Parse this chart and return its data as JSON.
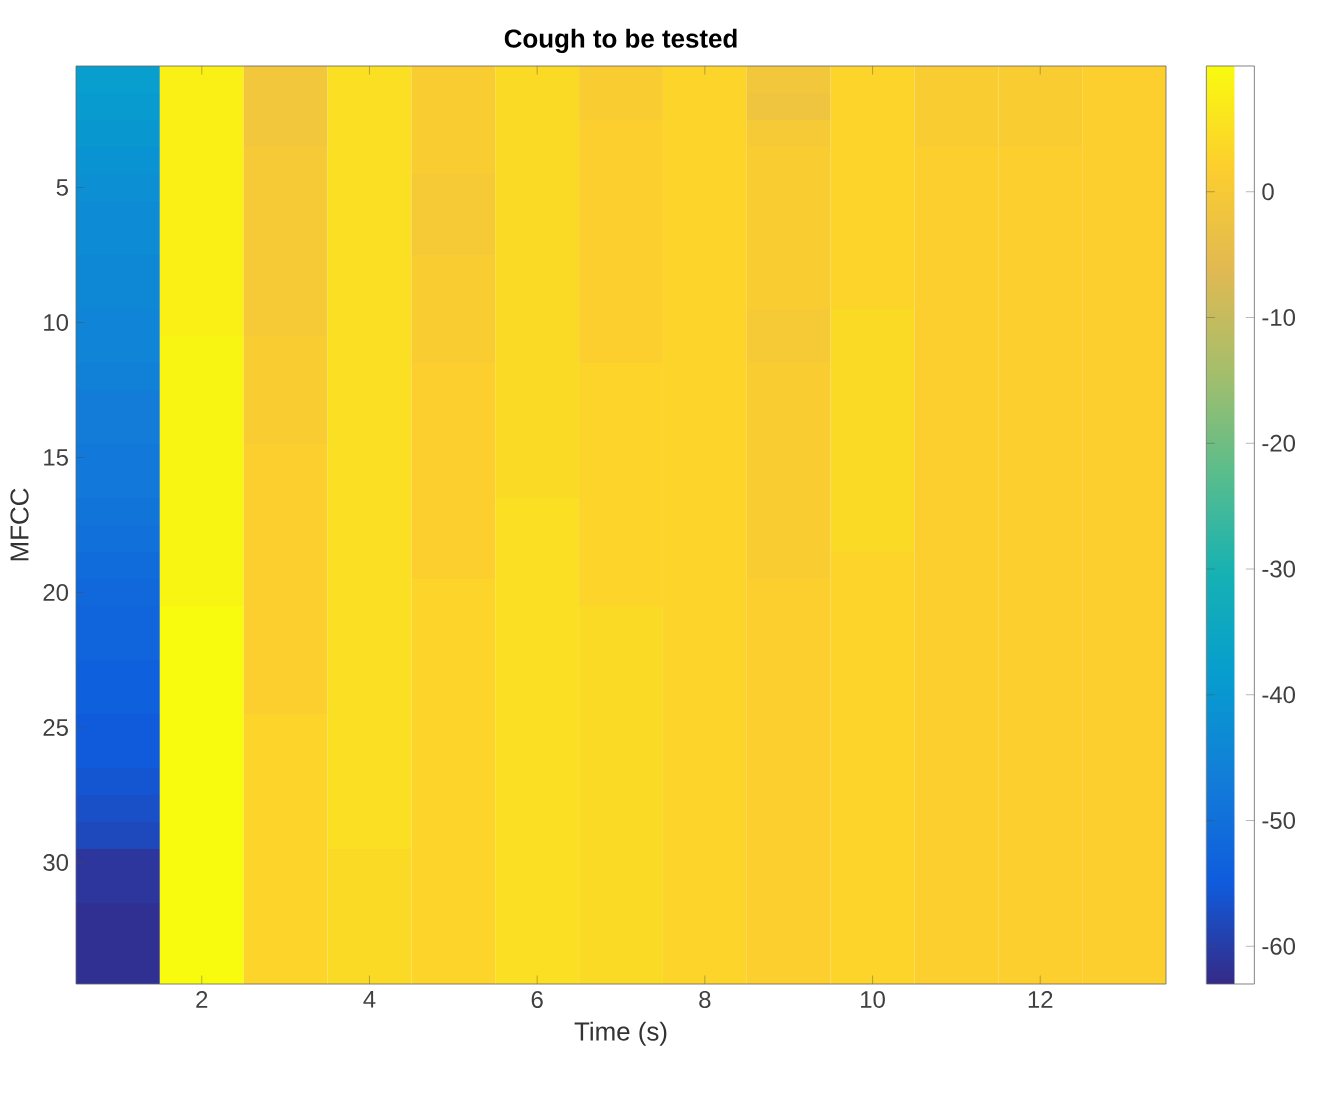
{
  "chart_data": {
    "type": "heatmap",
    "title": "Cough to be tested",
    "xlabel": "Time (s)",
    "ylabel": "MFCC",
    "categories": [
      null,
      "2",
      null,
      "4",
      null,
      "6",
      null,
      "8",
      null,
      "10",
      null,
      "12",
      null
    ],
    "y_categories": [
      null,
      null,
      null,
      null,
      "5",
      null,
      null,
      null,
      null,
      "10",
      null,
      null,
      null,
      null,
      "15",
      null,
      null,
      null,
      null,
      "20",
      null,
      null,
      null,
      null,
      "25",
      null,
      null,
      null,
      null,
      "30",
      null,
      null,
      null,
      null
    ],
    "clim": [
      -63,
      10
    ],
    "cticks": [
      -60,
      -50,
      -40,
      -30,
      -20,
      -10,
      0
    ],
    "cells": [
      [
        -38,
        8,
        -1,
        5,
        1,
        4,
        1,
        3,
        -1,
        3,
        1,
        1,
        2
      ],
      [
        -39,
        8,
        -1,
        5,
        1,
        4,
        1,
        3,
        -2,
        3,
        1,
        1,
        2
      ],
      [
        -40,
        8,
        -1,
        5,
        1,
        4,
        2,
        3,
        0,
        3,
        1,
        1,
        2
      ],
      [
        -41,
        8,
        0,
        5,
        1,
        4,
        2,
        3,
        1,
        3,
        2,
        2,
        2
      ],
      [
        -42,
        8,
        0,
        5,
        0,
        4,
        2,
        3,
        1,
        3,
        2,
        2,
        2
      ],
      [
        -43,
        8,
        0,
        5,
        0,
        4,
        2,
        3,
        1,
        3,
        2,
        2,
        2
      ],
      [
        -43,
        8,
        0,
        5,
        0,
        4,
        2,
        3,
        1,
        3,
        2,
        2,
        2
      ],
      [
        -44,
        8,
        0,
        5,
        1,
        4,
        2,
        3,
        1,
        3,
        2,
        2,
        2
      ],
      [
        -44,
        8,
        0,
        5,
        1,
        4,
        2,
        3,
        1,
        3,
        2,
        2,
        2
      ],
      [
        -45,
        8,
        0,
        5,
        1,
        4,
        2,
        3,
        0,
        4,
        2,
        2,
        2
      ],
      [
        -45,
        9,
        1,
        5,
        1,
        4,
        2,
        3,
        0,
        4,
        2,
        2,
        2
      ],
      [
        -46,
        9,
        1,
        5,
        2,
        4,
        3,
        3,
        1,
        4,
        2,
        2,
        2
      ],
      [
        -47,
        9,
        1,
        5,
        2,
        4,
        3,
        3,
        1,
        4,
        2,
        2,
        2
      ],
      [
        -47,
        9,
        1,
        5,
        2,
        4,
        3,
        3,
        1,
        4,
        2,
        2,
        2
      ],
      [
        -48,
        9,
        2,
        5,
        2,
        4,
        3,
        3,
        1,
        4,
        2,
        2,
        2
      ],
      [
        -48,
        9,
        2,
        5,
        2,
        4,
        3,
        3,
        1,
        4,
        2,
        2,
        2
      ],
      [
        -49,
        9,
        2,
        5,
        2,
        5,
        3,
        3,
        1,
        4,
        2,
        2,
        2
      ],
      [
        -50,
        9,
        2,
        5,
        2,
        5,
        3,
        3,
        1,
        4,
        2,
        2,
        2
      ],
      [
        -51,
        9,
        2,
        5,
        2,
        5,
        3,
        3,
        1,
        3,
        2,
        2,
        2
      ],
      [
        -52,
        9,
        2,
        5,
        3,
        5,
        3,
        3,
        2,
        3,
        2,
        2,
        2
      ],
      [
        -53,
        10,
        2,
        5,
        3,
        5,
        4,
        3,
        2,
        3,
        2,
        2,
        2
      ],
      [
        -53,
        10,
        2,
        5,
        3,
        5,
        4,
        3,
        2,
        3,
        2,
        2,
        2
      ],
      [
        -54,
        10,
        2,
        5,
        3,
        5,
        4,
        3,
        2,
        3,
        2,
        2,
        2
      ],
      [
        -54,
        10,
        2,
        5,
        3,
        5,
        4,
        3,
        2,
        3,
        2,
        2,
        2
      ],
      [
        -55,
        10,
        3,
        5,
        3,
        5,
        4,
        3,
        2,
        3,
        2,
        2,
        2
      ],
      [
        -55,
        10,
        3,
        5,
        3,
        5,
        4,
        3,
        2,
        3,
        2,
        2,
        2
      ],
      [
        -56,
        10,
        3,
        5,
        3,
        5,
        4,
        3,
        2,
        3,
        2,
        2,
        2
      ],
      [
        -57,
        10,
        3,
        5,
        3,
        5,
        4,
        3,
        2,
        3,
        2,
        2,
        2
      ],
      [
        -58,
        10,
        3,
        5,
        3,
        5,
        4,
        3,
        2,
        3,
        2,
        2,
        2
      ],
      [
        -61,
        10,
        3,
        4,
        3,
        5,
        4,
        3,
        2,
        3,
        2,
        2,
        2
      ],
      [
        -61,
        10,
        3,
        4,
        3,
        5,
        4,
        3,
        2,
        3,
        2,
        2,
        2
      ],
      [
        -62,
        10,
        3,
        4,
        3,
        5,
        4,
        3,
        2,
        3,
        2,
        2,
        2
      ],
      [
        -62,
        10,
        3,
        4,
        3,
        5,
        4,
        3,
        2,
        3,
        2,
        2,
        2
      ],
      [
        -62,
        10,
        3,
        4,
        3,
        5,
        4,
        3,
        2,
        3,
        2,
        2,
        2
      ]
    ]
  }
}
